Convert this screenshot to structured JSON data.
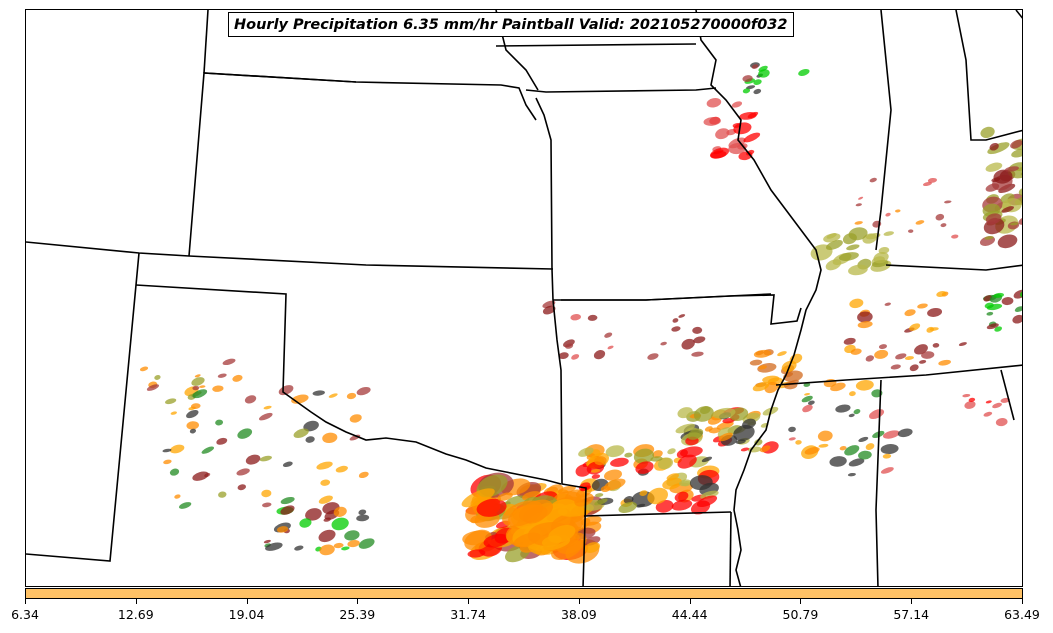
{
  "title": "Hourly Precipitation 6.35 mm/hr Paintball Valid: 202105270000f032",
  "colorbar": {
    "color": "#ffc266",
    "ticks": [
      "6.34",
      "12.69",
      "19.04",
      "25.39",
      "31.74",
      "38.09",
      "44.44",
      "50.79",
      "57.14",
      "63.49"
    ]
  },
  "member_colors": [
    "#8b1a1a",
    "#a53a3a",
    "#ff0000",
    "#ff8c00",
    "#ffa500",
    "#9aa02a",
    "#b8b84a",
    "#228b22",
    "#00cc00",
    "#333333",
    "#e05050",
    "#d2691e"
  ]
}
